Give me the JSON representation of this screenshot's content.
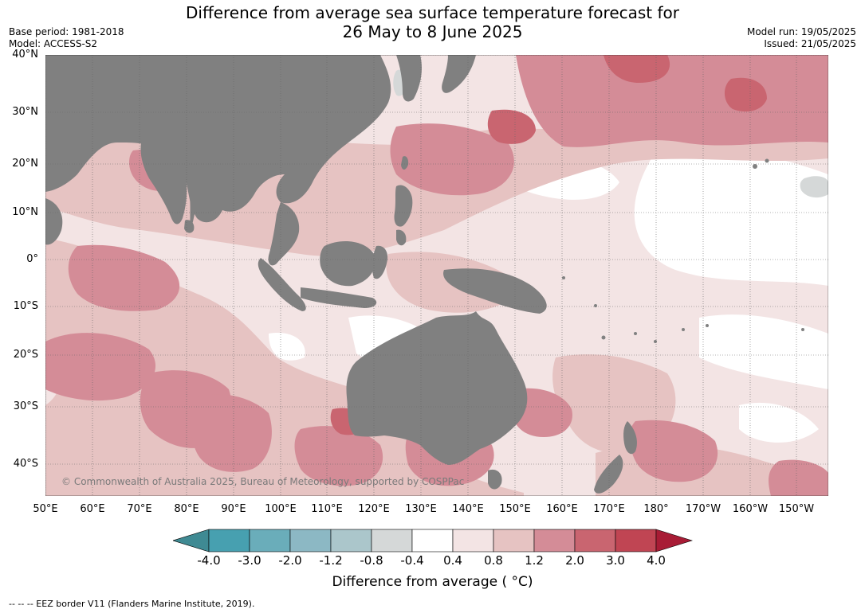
{
  "title_line1": "Difference from average sea surface temperature forecast for",
  "title_line2": "26 May to 8 June 2025",
  "base_period": "Base period: 1981-2018",
  "model": "Model: ACCESS-S2",
  "model_run": "Model run: 19/05/2025",
  "issued": "Issued: 21/05/2025",
  "lat_labels": [
    "40°N",
    "30°N",
    "20°N",
    "10°N",
    "0°",
    "10°S",
    "20°S",
    "30°S",
    "40°S"
  ],
  "lon_labels": [
    "50°E",
    "60°E",
    "70°E",
    "80°E",
    "90°E",
    "100°E",
    "110°E",
    "120°E",
    "130°E",
    "140°E",
    "150°E",
    "160°E",
    "170°E",
    "180°",
    "170°W",
    "160°W",
    "150°W"
  ],
  "copyright": "© Commonwealth of Australia 2025, Bureau of Meteorology, supported by COSPPac",
  "legend": {
    "title": "Difference from average ( °C)",
    "ticks": [
      "-4.0",
      "-3.0",
      "-2.0",
      "-1.2",
      "-0.8",
      "-0.4",
      "0.4",
      "0.8",
      "1.2",
      "2.0",
      "3.0",
      "4.0"
    ],
    "colors": [
      "#3f8a93",
      "#47a0b0",
      "#6aadba",
      "#8cb8c4",
      "#abc6cb",
      "#d5d8d8",
      "#ffffff",
      "#f3e4e4",
      "#e6c3c2",
      "#d48c97",
      "#c96570",
      "#c04553",
      "#a81c35"
    ]
  },
  "colors": {
    "land": "#808080",
    "gray_band": "#d5d8d8"
  },
  "footnote": "--  --  -- EEZ border V11 (Flanders Marine Institute, 2019)."
}
